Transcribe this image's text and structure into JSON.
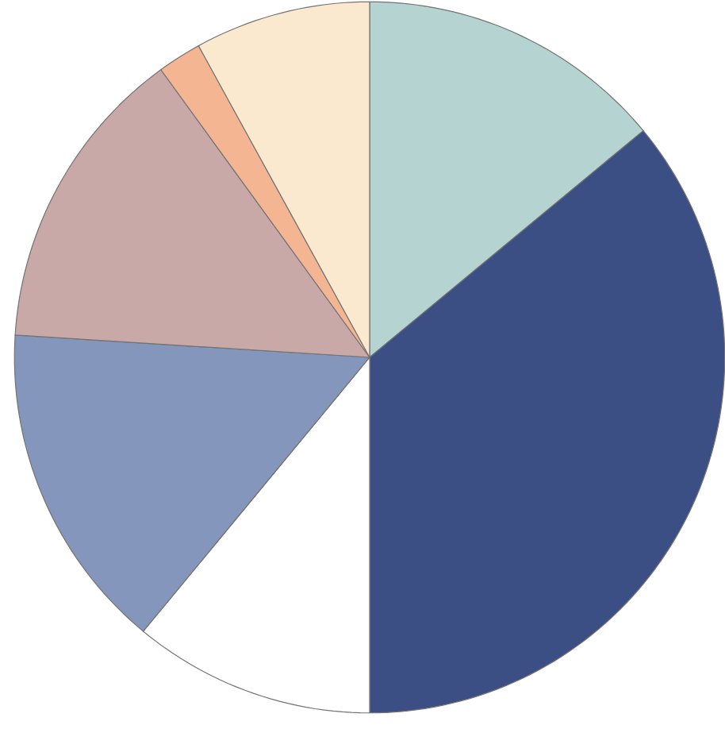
{
  "chart_data": {
    "type": "pie",
    "categories": [
      null,
      null,
      null,
      null,
      null,
      null,
      null
    ],
    "values": [
      14,
      36,
      11,
      15,
      14,
      2,
      8
    ],
    "colors": [
      "#b5d3d0",
      "#3b4f85",
      "#ffffff",
      "#8496bb",
      "#c9a8a8",
      "#f4b592",
      "#fbe9cf"
    ]
  }
}
